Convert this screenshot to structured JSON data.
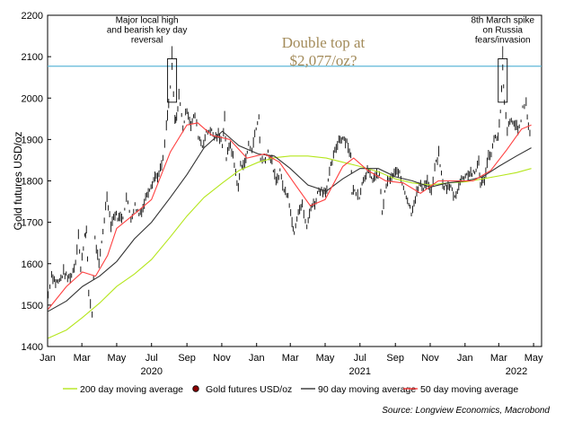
{
  "chart_data": {
    "type": "line",
    "title": "",
    "headline": [
      "Double top at",
      "$2,077/oz?"
    ],
    "ylabel": "Gold futures USD/oz",
    "xlabel": "",
    "ylim": [
      1400,
      2200
    ],
    "yticks": [
      1400,
      1500,
      1600,
      1700,
      1800,
      1900,
      2000,
      2100,
      2200
    ],
    "xrange": [
      "2020-01-01",
      "2022-05-15"
    ],
    "month_ticks": [
      {
        "date": "2020-01-01",
        "label": "Jan"
      },
      {
        "date": "2020-03-01",
        "label": "Mar"
      },
      {
        "date": "2020-05-01",
        "label": "May"
      },
      {
        "date": "2020-07-01",
        "label": "Jul"
      },
      {
        "date": "2020-09-01",
        "label": "Sep"
      },
      {
        "date": "2020-11-01",
        "label": "Nov"
      },
      {
        "date": "2021-01-01",
        "label": "Jan"
      },
      {
        "date": "2021-03-01",
        "label": "Mar"
      },
      {
        "date": "2021-05-01",
        "label": "May"
      },
      {
        "date": "2021-07-01",
        "label": "Jul"
      },
      {
        "date": "2021-09-01",
        "label": "Sep"
      },
      {
        "date": "2021-11-01",
        "label": "Nov"
      },
      {
        "date": "2022-01-01",
        "label": "Jan"
      },
      {
        "date": "2022-03-01",
        "label": "Mar"
      },
      {
        "date": "2022-05-01",
        "label": "May"
      }
    ],
    "year_labels": [
      {
        "date": "2020-07-01",
        "label": "2020"
      },
      {
        "date": "2021-07-01",
        "label": "2021"
      },
      {
        "date": "2022-04-01",
        "label": "2022"
      }
    ],
    "reference_line": {
      "y": 2077
    },
    "annotations": [
      {
        "lines": [
          "Major local high",
          "and bearish key day",
          "reversal"
        ],
        "date": "2020-08-06",
        "y_low": 1990,
        "y_high": 2095
      },
      {
        "lines": [
          "8th March spike",
          "on Russia",
          "fears/invasion"
        ],
        "date": "2022-03-08",
        "y_low": 1990,
        "y_high": 2095
      }
    ],
    "source": "Source: Longview Economics, Macrobond",
    "series": [
      {
        "name": "Gold futures USD/oz",
        "kind": "candles",
        "color": "#1a1a1a",
        "points": [
          [
            "2020-01-02",
            1525
          ],
          [
            "2020-01-08",
            1575
          ],
          [
            "2020-01-15",
            1555
          ],
          [
            "2020-01-22",
            1558
          ],
          [
            "2020-01-29",
            1580
          ],
          [
            "2020-02-05",
            1565
          ],
          [
            "2020-02-12",
            1572
          ],
          [
            "2020-02-19",
            1605
          ],
          [
            "2020-02-24",
            1675
          ],
          [
            "2020-02-28",
            1585
          ],
          [
            "2020-03-06",
            1670
          ],
          [
            "2020-03-09",
            1680
          ],
          [
            "2020-03-13",
            1530
          ],
          [
            "2020-03-19",
            1478
          ],
          [
            "2020-03-24",
            1660
          ],
          [
            "2020-03-31",
            1595
          ],
          [
            "2020-04-07",
            1680
          ],
          [
            "2020-04-14",
            1765
          ],
          [
            "2020-04-21",
            1695
          ],
          [
            "2020-04-28",
            1720
          ],
          [
            "2020-05-05",
            1710
          ],
          [
            "2020-05-12",
            1715
          ],
          [
            "2020-05-18",
            1760
          ],
          [
            "2020-05-26",
            1710
          ],
          [
            "2020-06-02",
            1740
          ],
          [
            "2020-06-09",
            1720
          ],
          [
            "2020-06-16",
            1735
          ],
          [
            "2020-06-23",
            1770
          ],
          [
            "2020-06-30",
            1790
          ],
          [
            "2020-07-07",
            1810
          ],
          [
            "2020-07-14",
            1815
          ],
          [
            "2020-07-21",
            1850
          ],
          [
            "2020-07-27",
            1930
          ],
          [
            "2020-07-31",
            1985
          ],
          [
            "2020-08-06",
            2070
          ],
          [
            "2020-08-11",
            1945
          ],
          [
            "2020-08-14",
            1950
          ],
          [
            "2020-08-18",
            2010
          ],
          [
            "2020-08-25",
            1930
          ],
          [
            "2020-09-01",
            1975
          ],
          [
            "2020-09-08",
            1935
          ],
          [
            "2020-09-15",
            1960
          ],
          [
            "2020-09-21",
            1910
          ],
          [
            "2020-09-28",
            1885
          ],
          [
            "2020-10-05",
            1915
          ],
          [
            "2020-10-12",
            1925
          ],
          [
            "2020-10-19",
            1905
          ],
          [
            "2020-10-26",
            1910
          ],
          [
            "2020-11-02",
            1890
          ],
          [
            "2020-11-06",
            1955
          ],
          [
            "2020-11-09",
            1855
          ],
          [
            "2020-11-16",
            1890
          ],
          [
            "2020-11-23",
            1840
          ],
          [
            "2020-11-30",
            1780
          ],
          [
            "2020-12-04",
            1840
          ],
          [
            "2020-12-11",
            1840
          ],
          [
            "2020-12-18",
            1885
          ],
          [
            "2020-12-24",
            1880
          ],
          [
            "2021-01-05",
            1955
          ],
          [
            "2021-01-08",
            1850
          ],
          [
            "2021-01-14",
            1850
          ],
          [
            "2021-01-21",
            1870
          ],
          [
            "2021-01-28",
            1845
          ],
          [
            "2021-02-04",
            1795
          ],
          [
            "2021-02-11",
            1825
          ],
          [
            "2021-02-18",
            1775
          ],
          [
            "2021-02-25",
            1770
          ],
          [
            "2021-03-04",
            1700
          ],
          [
            "2021-03-08",
            1680
          ],
          [
            "2021-03-15",
            1730
          ],
          [
            "2021-03-22",
            1740
          ],
          [
            "2021-03-30",
            1685
          ],
          [
            "2021-04-06",
            1740
          ],
          [
            "2021-04-13",
            1745
          ],
          [
            "2021-04-20",
            1780
          ],
          [
            "2021-04-27",
            1775
          ],
          [
            "2021-05-04",
            1780
          ],
          [
            "2021-05-11",
            1835
          ],
          [
            "2021-05-18",
            1870
          ],
          [
            "2021-05-25",
            1900
          ],
          [
            "2021-06-01",
            1905
          ],
          [
            "2021-06-08",
            1895
          ],
          [
            "2021-06-15",
            1860
          ],
          [
            "2021-06-17",
            1775
          ],
          [
            "2021-06-24",
            1775
          ],
          [
            "2021-06-30",
            1765
          ],
          [
            "2021-07-07",
            1805
          ],
          [
            "2021-07-14",
            1825
          ],
          [
            "2021-07-21",
            1805
          ],
          [
            "2021-07-28",
            1810
          ],
          [
            "2021-08-04",
            1815
          ],
          [
            "2021-08-09",
            1725
          ],
          [
            "2021-08-16",
            1790
          ],
          [
            "2021-08-23",
            1805
          ],
          [
            "2021-08-30",
            1815
          ],
          [
            "2021-09-06",
            1825
          ],
          [
            "2021-09-13",
            1795
          ],
          [
            "2021-09-20",
            1765
          ],
          [
            "2021-09-29",
            1725
          ],
          [
            "2021-10-06",
            1760
          ],
          [
            "2021-10-13",
            1790
          ],
          [
            "2021-10-20",
            1785
          ],
          [
            "2021-10-27",
            1800
          ],
          [
            "2021-11-03",
            1770
          ],
          [
            "2021-11-09",
            1830
          ],
          [
            "2021-11-16",
            1865
          ],
          [
            "2021-11-23",
            1790
          ],
          [
            "2021-11-30",
            1785
          ],
          [
            "2021-12-07",
            1785
          ],
          [
            "2021-12-14",
            1760
          ],
          [
            "2021-12-21",
            1790
          ],
          [
            "2021-12-28",
            1810
          ],
          [
            "2022-01-04",
            1815
          ],
          [
            "2022-01-11",
            1820
          ],
          [
            "2022-01-18",
            1815
          ],
          [
            "2022-01-25",
            1850
          ],
          [
            "2022-01-28",
            1790
          ],
          [
            "2022-02-04",
            1805
          ],
          [
            "2022-02-11",
            1860
          ],
          [
            "2022-02-16",
            1870
          ],
          [
            "2022-02-23",
            1910
          ],
          [
            "2022-02-28",
            1905
          ],
          [
            "2022-03-04",
            1965
          ],
          [
            "2022-03-08",
            2070
          ],
          [
            "2022-03-11",
            1985
          ],
          [
            "2022-03-16",
            1925
          ],
          [
            "2022-03-23",
            1945
          ],
          [
            "2022-03-30",
            1935
          ],
          [
            "2022-04-06",
            1925
          ],
          [
            "2022-04-12",
            1975
          ],
          [
            "2022-04-18",
            1985
          ],
          [
            "2022-04-22",
            1935
          ],
          [
            "2022-04-27",
            1895
          ]
        ]
      },
      {
        "name": "200 day moving average",
        "kind": "line",
        "color": "#b5e61d",
        "points": [
          [
            "2020-01-02",
            1420
          ],
          [
            "2020-02-03",
            1440
          ],
          [
            "2020-03-02",
            1470
          ],
          [
            "2020-04-01",
            1505
          ],
          [
            "2020-05-01",
            1545
          ],
          [
            "2020-06-01",
            1575
          ],
          [
            "2020-07-01",
            1610
          ],
          [
            "2020-08-03",
            1665
          ],
          [
            "2020-09-01",
            1715
          ],
          [
            "2020-10-01",
            1760
          ],
          [
            "2020-11-02",
            1795
          ],
          [
            "2020-12-01",
            1825
          ],
          [
            "2021-01-04",
            1845
          ],
          [
            "2021-02-01",
            1856
          ],
          [
            "2021-03-01",
            1860
          ],
          [
            "2021-04-01",
            1860
          ],
          [
            "2021-05-03",
            1855
          ],
          [
            "2021-06-01",
            1845
          ],
          [
            "2021-07-01",
            1835
          ],
          [
            "2021-08-02",
            1822
          ],
          [
            "2021-09-01",
            1805
          ],
          [
            "2021-10-01",
            1795
          ],
          [
            "2021-11-01",
            1790
          ],
          [
            "2021-12-01",
            1795
          ],
          [
            "2022-01-03",
            1798
          ],
          [
            "2022-02-01",
            1805
          ],
          [
            "2022-03-01",
            1812
          ],
          [
            "2022-04-01",
            1820
          ],
          [
            "2022-04-27",
            1830
          ]
        ]
      },
      {
        "name": "90 day moving average",
        "kind": "line",
        "color": "#333333",
        "points": [
          [
            "2020-01-02",
            1485
          ],
          [
            "2020-02-03",
            1510
          ],
          [
            "2020-03-02",
            1545
          ],
          [
            "2020-04-01",
            1570
          ],
          [
            "2020-05-01",
            1605
          ],
          [
            "2020-06-01",
            1660
          ],
          [
            "2020-07-01",
            1700
          ],
          [
            "2020-08-03",
            1760
          ],
          [
            "2020-09-01",
            1815
          ],
          [
            "2020-10-01",
            1880
          ],
          [
            "2020-11-02",
            1920
          ],
          [
            "2020-12-01",
            1885
          ],
          [
            "2021-01-04",
            1865
          ],
          [
            "2021-02-01",
            1860
          ],
          [
            "2021-03-01",
            1830
          ],
          [
            "2021-04-01",
            1790
          ],
          [
            "2021-05-03",
            1775
          ],
          [
            "2021-06-01",
            1805
          ],
          [
            "2021-07-01",
            1830
          ],
          [
            "2021-08-02",
            1830
          ],
          [
            "2021-09-01",
            1810
          ],
          [
            "2021-10-01",
            1800
          ],
          [
            "2021-11-01",
            1785
          ],
          [
            "2021-12-01",
            1795
          ],
          [
            "2022-01-03",
            1800
          ],
          [
            "2022-02-01",
            1810
          ],
          [
            "2022-03-01",
            1835
          ],
          [
            "2022-04-01",
            1860
          ],
          [
            "2022-04-27",
            1880
          ]
        ]
      },
      {
        "name": "50 day moving average",
        "kind": "line",
        "color": "#ff4040",
        "points": [
          [
            "2020-01-02",
            1490
          ],
          [
            "2020-02-03",
            1545
          ],
          [
            "2020-03-02",
            1580
          ],
          [
            "2020-03-25",
            1570
          ],
          [
            "2020-04-15",
            1620
          ],
          [
            "2020-05-01",
            1685
          ],
          [
            "2020-06-01",
            1720
          ],
          [
            "2020-07-01",
            1755
          ],
          [
            "2020-08-03",
            1870
          ],
          [
            "2020-09-01",
            1935
          ],
          [
            "2020-09-20",
            1940
          ],
          [
            "2020-10-15",
            1910
          ],
          [
            "2020-11-15",
            1900
          ],
          [
            "2020-12-15",
            1855
          ],
          [
            "2021-01-15",
            1865
          ],
          [
            "2021-02-10",
            1845
          ],
          [
            "2021-03-10",
            1790
          ],
          [
            "2021-04-05",
            1740
          ],
          [
            "2021-05-01",
            1755
          ],
          [
            "2021-06-01",
            1835
          ],
          [
            "2021-06-20",
            1855
          ],
          [
            "2021-07-15",
            1825
          ],
          [
            "2021-08-15",
            1800
          ],
          [
            "2021-09-15",
            1795
          ],
          [
            "2021-10-15",
            1770
          ],
          [
            "2021-11-15",
            1800
          ],
          [
            "2021-12-15",
            1800
          ],
          [
            "2022-01-15",
            1800
          ],
          [
            "2022-02-15",
            1825
          ],
          [
            "2022-03-15",
            1875
          ],
          [
            "2022-04-10",
            1925
          ],
          [
            "2022-04-27",
            1935
          ]
        ]
      }
    ],
    "legend": {
      "placement": "bottom",
      "entries": [
        {
          "label": "200 day moving average",
          "color": "#b5e61d",
          "marker": "line"
        },
        {
          "label": "Gold futures USD/oz",
          "color": "#8b0000",
          "marker": "dot"
        },
        {
          "label": "90 day moving average",
          "color": "#333333",
          "marker": "line"
        },
        {
          "label": "50 day moving average",
          "color": "#ff4040",
          "marker": "line"
        }
      ]
    }
  }
}
